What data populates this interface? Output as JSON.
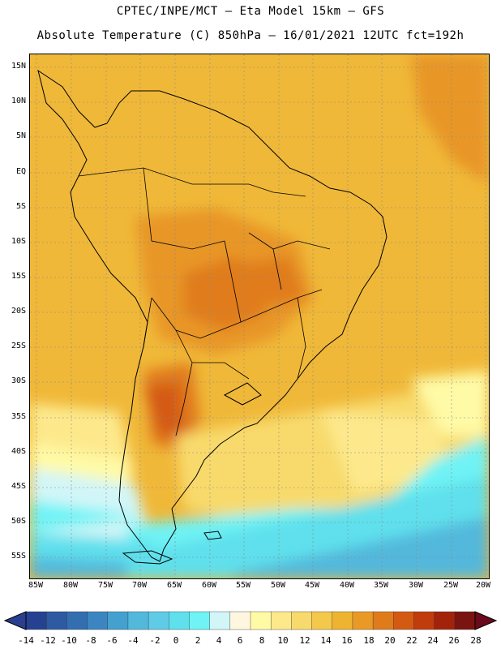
{
  "title_line1": "CPTEC/INPE/MCT –  Eta Model 15km – GFS",
  "title_line2": "Absolute Temperature (C) 850hPa – 16/01/2021 12UTC fct=192h",
  "lat_labels": [
    "15N",
    "10N",
    "5N",
    "EQ",
    "5S",
    "10S",
    "15S",
    "20S",
    "25S",
    "30S",
    "35S",
    "40S",
    "45S",
    "50S",
    "55S"
  ],
  "lon_labels": [
    "85W",
    "80W",
    "75W",
    "70W",
    "65W",
    "60W",
    "55W",
    "50W",
    "45W",
    "40W",
    "35W",
    "30W",
    "25W",
    "20W"
  ],
  "colorbar": {
    "labels": [
      "-14",
      "-12",
      "-10",
      "-8",
      "-6",
      "-4",
      "-2",
      "0",
      "2",
      "4",
      "6",
      "8",
      "10",
      "12",
      "14",
      "16",
      "18",
      "20",
      "22",
      "24",
      "26",
      "28"
    ],
    "low_color": "#2a3f8f",
    "high_color": "#6b0a1a",
    "colors": [
      "#26418f",
      "#2d5aa0",
      "#336fb0",
      "#3b86c0",
      "#44a0cf",
      "#52b8dc",
      "#5fcbe6",
      "#5fe0ec",
      "#6ff3f5",
      "#d2f6f8",
      "#fff6e0",
      "#fffaa6",
      "#fde98c",
      "#f8da6c",
      "#f3c84b",
      "#eeb430",
      "#e99a26",
      "#e07b1c",
      "#d45a12",
      "#c03c0c",
      "#a3230a",
      "#7a1410"
    ]
  },
  "colors": {
    "ocean_base": "#f0b838",
    "land_outline": "#000000"
  }
}
